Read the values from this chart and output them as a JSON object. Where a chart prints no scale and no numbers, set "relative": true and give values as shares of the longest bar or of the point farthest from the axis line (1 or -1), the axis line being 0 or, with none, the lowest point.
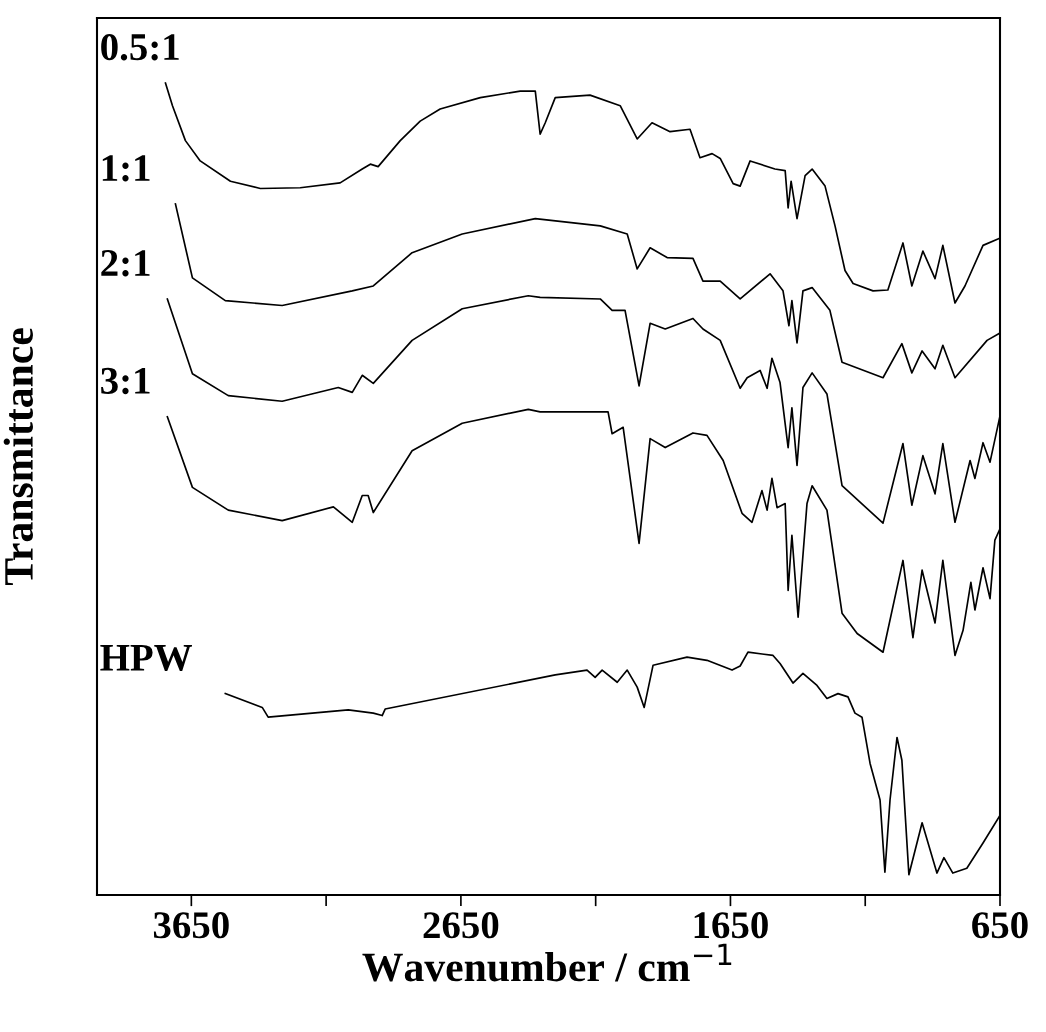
{
  "chart_data": {
    "type": "line",
    "xlabel": "Wavenumber / cm$^{−1}$",
    "ylabel": "Transmittance",
    "relative": true,
    "xlim": [
      4000,
      650
    ],
    "xticks": [
      3650,
      {
        "value": 3150,
        "label": null
      },
      2650,
      {
        "value": 2150,
        "label": null
      },
      1650,
      {
        "value": 1150,
        "label": null
      },
      650
    ],
    "tick_labels": "x",
    "grid": false,
    "legend": false,
    "marker": "none",
    "line_style": "solid",
    "series": [
      {
        "name": "0.5:1",
        "color": "#000000",
        "x": [
          3746,
          3720,
          3672,
          3617,
          3505,
          3394,
          3246,
          3098,
          3016,
          2986,
          2957,
          2875,
          2801,
          2727,
          2578,
          2430,
          2374,
          2356,
          2337,
          2300,
          2171,
          2059,
          1996,
          1941,
          1874,
          1800,
          1763,
          1718,
          1688,
          1640,
          1614,
          1577,
          1485,
          1447,
          1436,
          1425,
          1403,
          1373,
          1347,
          1299,
          1262,
          1225,
          1195,
          1121,
          1066,
          1010,
          977,
          936,
          891,
          862,
          817,
          780,
          713,
          650
        ],
        "values": [
          1.0,
          0.972,
          0.929,
          0.904,
          0.879,
          0.87,
          0.871,
          0.877,
          0.894,
          0.9,
          0.897,
          0.929,
          0.953,
          0.968,
          0.982,
          0.99,
          0.99,
          0.937,
          0.951,
          0.982,
          0.985,
          0.972,
          0.931,
          0.951,
          0.94,
          0.943,
          0.908,
          0.913,
          0.907,
          0.876,
          0.873,
          0.904,
          0.894,
          0.892,
          0.846,
          0.879,
          0.833,
          0.886,
          0.894,
          0.873,
          0.824,
          0.769,
          0.753,
          0.744,
          0.745,
          0.803,
          0.75,
          0.793,
          0.759,
          0.8,
          0.729,
          0.75,
          0.8,
          0.809
        ]
      },
      {
        "name": "1:1",
        "color": "#000000",
        "x": [
          3709,
          3646,
          3524,
          3313,
          3053,
          2975,
          2831,
          2645,
          2374,
          2133,
          2033,
          1996,
          1948,
          1885,
          1789,
          1752,
          1688,
          1614,
          1503,
          1455,
          1433,
          1422,
          1403,
          1381,
          1347,
          1281,
          1236,
          1084,
          1014,
          977,
          939,
          891,
          862,
          817,
          698,
          650
        ],
        "values": [
          0.851,
          0.76,
          0.732,
          0.726,
          0.744,
          0.75,
          0.791,
          0.814,
          0.833,
          0.824,
          0.814,
          0.771,
          0.797,
          0.785,
          0.784,
          0.756,
          0.756,
          0.734,
          0.765,
          0.744,
          0.701,
          0.732,
          0.68,
          0.744,
          0.748,
          0.72,
          0.656,
          0.637,
          0.679,
          0.643,
          0.67,
          0.648,
          0.677,
          0.637,
          0.683,
          0.692
        ]
      },
      {
        "name": "2:1",
        "color": "#000000",
        "x": [
          3739,
          3646,
          3513,
          3313,
          3105,
          3053,
          3016,
          2975,
          2831,
          2645,
          2400,
          2356,
          2133,
          2089,
          2041,
          1989,
          1948,
          1892,
          1789,
          1752,
          1688,
          1614,
          1588,
          1540,
          1514,
          1496,
          1466,
          1436,
          1422,
          1403,
          1381,
          1347,
          1292,
          1236,
          1084,
          1010,
          977,
          936,
          891,
          862,
          817,
          761,
          743,
          713,
          687,
          650
        ],
        "values": [
          0.734,
          0.642,
          0.615,
          0.608,
          0.625,
          0.619,
          0.64,
          0.63,
          0.683,
          0.722,
          0.738,
          0.736,
          0.734,
          0.72,
          0.72,
          0.627,
          0.704,
          0.697,
          0.71,
          0.697,
          0.683,
          0.624,
          0.637,
          0.646,
          0.624,
          0.661,
          0.631,
          0.551,
          0.6,
          0.529,
          0.625,
          0.643,
          0.617,
          0.504,
          0.458,
          0.556,
          0.48,
          0.541,
          0.494,
          0.556,
          0.459,
          0.535,
          0.513,
          0.557,
          0.533,
          0.59
        ]
      },
      {
        "name": "3:1",
        "color": "#000000",
        "x": [
          3739,
          3646,
          3513,
          3313,
          3123,
          3053,
          3016,
          2994,
          2975,
          2831,
          2645,
          2400,
          2356,
          2104,
          2089,
          2048,
          1989,
          1948,
          1892,
          1789,
          1737,
          1677,
          1607,
          1570,
          1533,
          1514,
          1496,
          1477,
          1447,
          1436,
          1422,
          1399,
          1366,
          1347,
          1292,
          1236,
          1180,
          1084,
          1010,
          973,
          939,
          891,
          862,
          817,
          787,
          758,
          743,
          713,
          687,
          669,
          650
        ],
        "values": [
          0.589,
          0.502,
          0.474,
          0.461,
          0.478,
          0.459,
          0.492,
          0.492,
          0.471,
          0.547,
          0.581,
          0.598,
          0.595,
          0.595,
          0.568,
          0.576,
          0.433,
          0.562,
          0.551,
          0.569,
          0.566,
          0.535,
          0.47,
          0.459,
          0.498,
          0.474,
          0.513,
          0.477,
          0.482,
          0.375,
          0.443,
          0.342,
          0.482,
          0.504,
          0.474,
          0.347,
          0.322,
          0.299,
          0.412,
          0.317,
          0.4,
          0.335,
          0.412,
          0.295,
          0.326,
          0.385,
          0.351,
          0.403,
          0.365,
          0.437,
          0.451
        ]
      },
      {
        "name": "HPW",
        "color": "#000000",
        "x": [
          3524,
          3387,
          3365,
          3068,
          2975,
          2942,
          2931,
          2300,
          2182,
          2152,
          2126,
          2070,
          2033,
          1996,
          1970,
          1937,
          1811,
          1737,
          1644,
          1614,
          1585,
          1492,
          1466,
          1418,
          1381,
          1329,
          1292,
          1251,
          1214,
          1188,
          1162,
          1132,
          1095,
          1077,
          1058,
          1032,
          1014,
          988,
          939,
          884,
          858,
          825,
          773,
          713,
          650
        ],
        "values": [
          0.248,
          0.231,
          0.219,
          0.228,
          0.224,
          0.221,
          0.229,
          0.271,
          0.277,
          0.268,
          0.277,
          0.262,
          0.277,
          0.256,
          0.231,
          0.283,
          0.293,
          0.289,
          0.277,
          0.282,
          0.299,
          0.295,
          0.285,
          0.261,
          0.273,
          0.258,
          0.242,
          0.248,
          0.244,
          0.224,
          0.219,
          0.162,
          0.117,
          0.028,
          0.117,
          0.194,
          0.166,
          0.025,
          0.089,
          0.027,
          0.046,
          0.027,
          0.033,
          0.064,
          0.098
        ]
      }
    ]
  }
}
